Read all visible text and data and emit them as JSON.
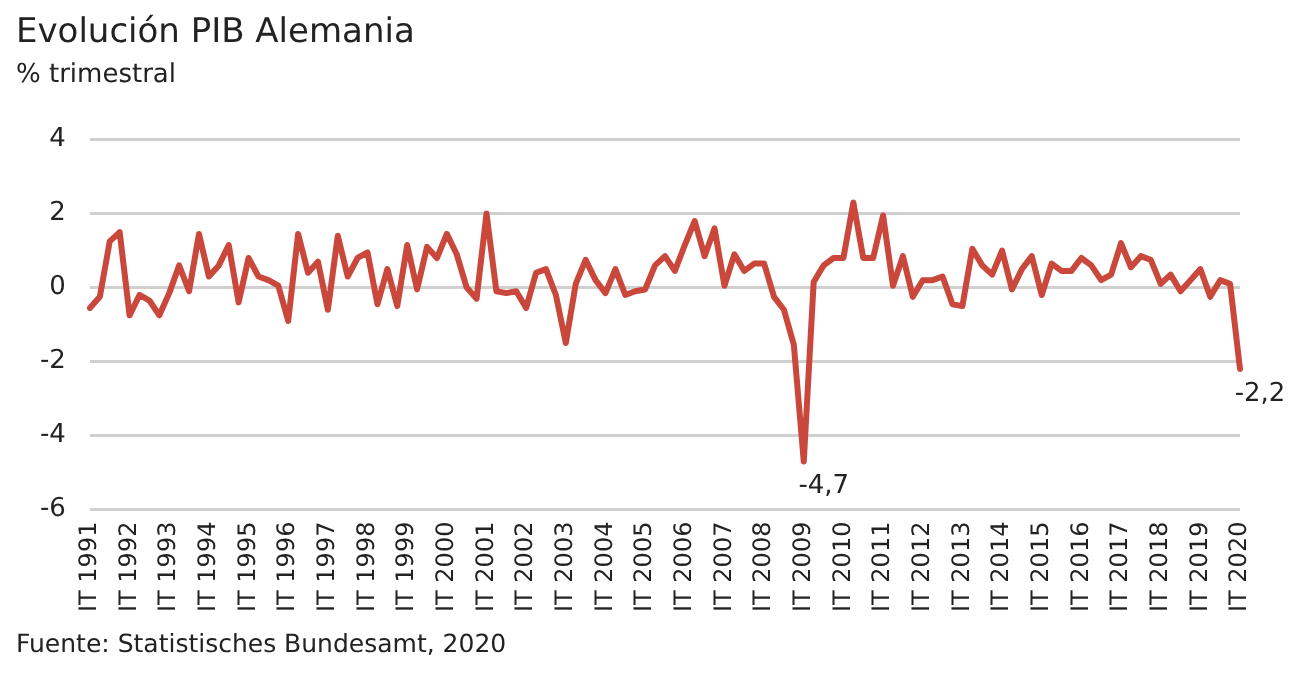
{
  "chart_data": {
    "type": "line",
    "title": "Evolución PIB Alemania",
    "subtitle": "% trimestral",
    "categories": [
      "IT 1991",
      null,
      null,
      null,
      "IT 1992",
      null,
      null,
      null,
      "IT 1993",
      null,
      null,
      null,
      "IT 1994",
      null,
      null,
      null,
      "IT 1995",
      null,
      null,
      null,
      "IT 1996",
      null,
      null,
      null,
      "IT 1997",
      null,
      null,
      null,
      "IT 1998",
      null,
      null,
      null,
      "IT 1999",
      null,
      null,
      null,
      "IT 2000",
      null,
      null,
      null,
      "IT 2001",
      null,
      null,
      null,
      "IT 2002",
      null,
      null,
      null,
      "IT 2003",
      null,
      null,
      null,
      "IT 2004",
      null,
      null,
      null,
      "IT 2005",
      null,
      null,
      null,
      "IT 2006",
      null,
      null,
      null,
      "IT 2007",
      null,
      null,
      null,
      "IT 2008",
      null,
      null,
      null,
      "IT 2009",
      null,
      null,
      null,
      "IT 2010",
      null,
      null,
      null,
      "IT 2011",
      null,
      null,
      null,
      "IT 2012",
      null,
      null,
      null,
      "IT 2013",
      null,
      null,
      null,
      "IT 2014",
      null,
      null,
      null,
      "IT 2015",
      null,
      null,
      null,
      "IT 2016",
      null,
      null,
      null,
      "IT 2017",
      null,
      null,
      null,
      "IT 2018",
      null,
      null,
      null,
      "IT 2019",
      null,
      null,
      null,
      "IT 2020"
    ],
    "series": [
      {
        "color": "#c9483b",
        "values": [
          -0.55,
          -0.25,
          1.25,
          1.5,
          -0.75,
          -0.2,
          -0.35,
          -0.75,
          -0.15,
          0.6,
          -0.1,
          1.45,
          0.3,
          0.6,
          1.15,
          -0.4,
          0.8,
          0.3,
          0.2,
          0.05,
          -0.9,
          1.45,
          0.4,
          0.7,
          -0.6,
          1.4,
          0.3,
          0.8,
          0.95,
          -0.45,
          0.5,
          -0.5,
          1.15,
          -0.05,
          1.1,
          0.8,
          1.45,
          0.9,
          0.0,
          -0.3,
          2.0,
          -0.1,
          -0.15,
          -0.1,
          -0.55,
          0.4,
          0.5,
          -0.2,
          -1.5,
          0.1,
          0.75,
          0.2,
          -0.15,
          0.5,
          -0.2,
          -0.1,
          -0.05,
          0.6,
          0.85,
          0.45,
          1.15,
          1.8,
          0.85,
          1.6,
          0.05,
          0.9,
          0.45,
          0.65,
          0.65,
          -0.25,
          -0.6,
          -1.55,
          -4.7,
          0.15,
          0.6,
          0.8,
          0.8,
          2.3,
          0.8,
          0.8,
          1.95,
          0.05,
          0.85,
          -0.25,
          0.2,
          0.2,
          0.3,
          -0.45,
          -0.5,
          1.05,
          0.6,
          0.35,
          1.0,
          -0.05,
          0.5,
          0.85,
          -0.2,
          0.65,
          0.45,
          0.45,
          0.8,
          0.6,
          0.2,
          0.35,
          1.2,
          0.55,
          0.85,
          0.75,
          0.1,
          0.35,
          -0.1,
          0.2,
          0.5,
          -0.25,
          0.2,
          0.1,
          -2.2
        ]
      }
    ],
    "ylim": [
      -6,
      4
    ],
    "yticks": [
      -6,
      -4,
      -2,
      0,
      2,
      4
    ],
    "grid": "y",
    "legend": false,
    "marker": "none",
    "line_style": "solid",
    "annotations": [
      {
        "text": "-4,7",
        "x": "IT 2009",
        "y": -4.7
      },
      {
        "text": "-2,2",
        "x": "IT 2020",
        "y": -2.2
      },
      "Fuente: Statistisches Bundesamt, 2020"
    ]
  }
}
